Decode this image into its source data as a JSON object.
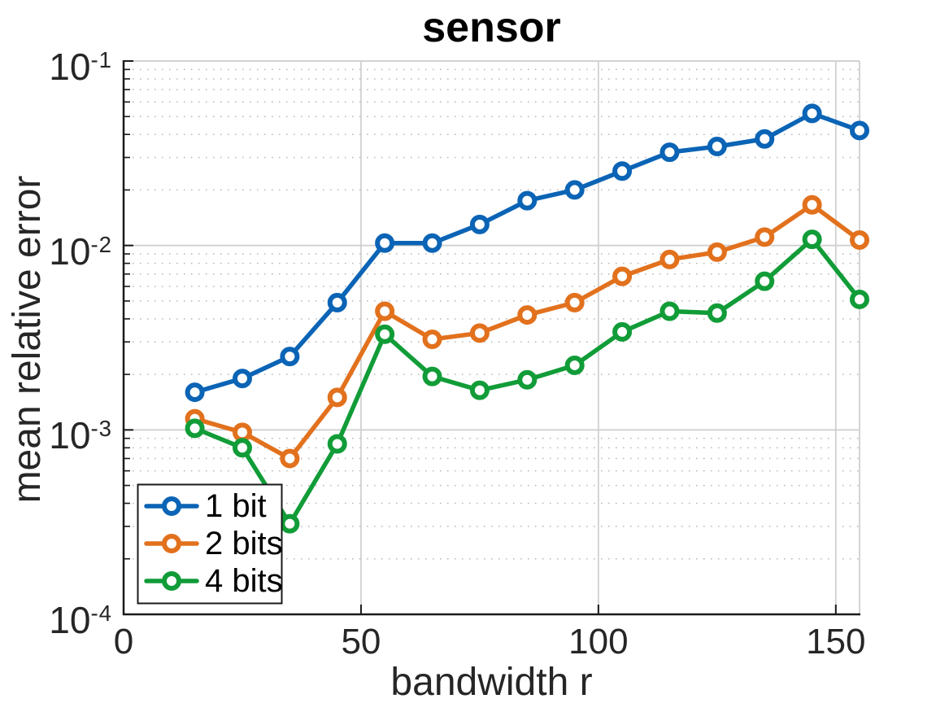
{
  "figure": {
    "background": "#ffffff"
  },
  "chart_data": {
    "type": "line",
    "title": "sensor",
    "xlabel": "bandwidth r",
    "ylabel": "mean relative error",
    "yscale": "log",
    "xlim": [
      0,
      155
    ],
    "ylim": [
      0.0001,
      0.1
    ],
    "x_ticks": [
      0,
      50,
      100,
      150
    ],
    "y_tick_exponents": [
      -1,
      -2,
      -3,
      -4
    ],
    "y_minor_decades": [
      -4,
      -3,
      -2
    ],
    "y_minor_mantissas": [
      2,
      3,
      4,
      5,
      6,
      7,
      8,
      9
    ],
    "grid": "major solid + minor dotted",
    "legend_position": "southwest",
    "x": [
      15,
      25,
      35,
      45,
      55,
      65,
      75,
      85,
      95,
      105,
      115,
      125,
      135,
      145,
      155
    ],
    "series": [
      {
        "name": "1 bit",
        "color": "#0b64b5",
        "values": [
          0.0016,
          0.0019,
          0.0025,
          0.0049,
          0.0103,
          0.0103,
          0.013,
          0.0175,
          0.02,
          0.0253,
          0.032,
          0.0344,
          0.0378,
          0.052,
          0.042
        ]
      },
      {
        "name": "2 bits",
        "color": "#e2711d",
        "values": [
          0.00115,
          0.00097,
          0.0007,
          0.0015,
          0.0044,
          0.0031,
          0.00335,
          0.0042,
          0.0049,
          0.0068,
          0.0084,
          0.0092,
          0.0111,
          0.0166,
          0.0107
        ]
      },
      {
        "name": "4 bits",
        "color": "#119c38",
        "values": [
          0.00102,
          0.0008,
          0.00031,
          0.00084,
          0.0033,
          0.00195,
          0.00164,
          0.00187,
          0.00224,
          0.0034,
          0.0044,
          0.0043,
          0.0064,
          0.0108,
          0.0051
        ]
      }
    ],
    "colors": {
      "axis": "#1a1a1a",
      "tick_label": "#262626",
      "major_grid": "#d0d0d0",
      "minor_grid": "#b5b5b5",
      "frame_topright": "#d0d0d0",
      "marker_face": "#ffffff"
    }
  }
}
